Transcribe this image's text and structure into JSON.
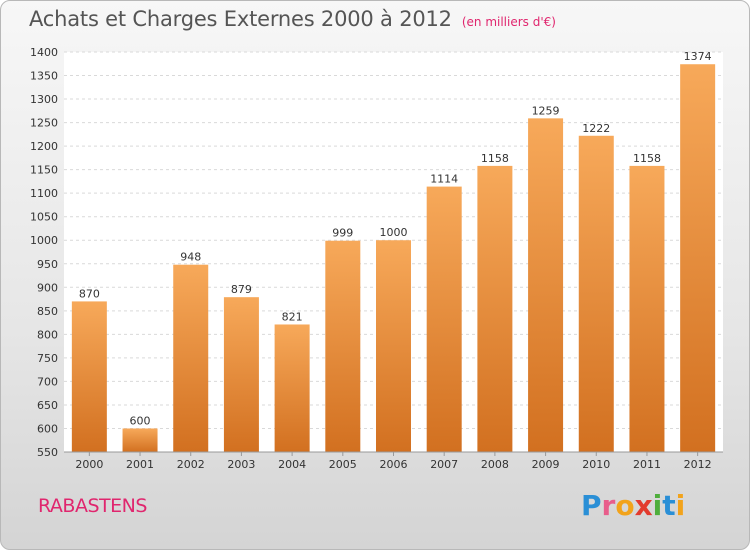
{
  "header": {
    "title": "Achats et Charges Externes 2000 à 2012",
    "subtitle": "(en milliers d'€)"
  },
  "footer": {
    "town": "RABASTENS",
    "brand": [
      {
        "char": "P",
        "color": "#2a8fd6"
      },
      {
        "char": "r",
        "color": "#e85d8b"
      },
      {
        "char": "o",
        "color": "#f2a31b"
      },
      {
        "char": "x",
        "color": "#e23b2e"
      },
      {
        "char": "i",
        "color": "#4fae3c"
      },
      {
        "char": "t",
        "color": "#2a8fd6"
      },
      {
        "char": "i",
        "color": "#f2a31b"
      }
    ]
  },
  "colors": {
    "bar_light": "#f7a95a",
    "bar_dark": "#d27020",
    "axis_text": "#333333",
    "grid": "#d9d9d9"
  },
  "chart_data": {
    "type": "bar",
    "categories": [
      "2000",
      "2001",
      "2002",
      "2003",
      "2004",
      "2005",
      "2006",
      "2007",
      "2008",
      "2009",
      "2010",
      "2011",
      "2012"
    ],
    "values": [
      870,
      600,
      948,
      879,
      821,
      999,
      1000,
      1114,
      1158,
      1259,
      1222,
      1158,
      1374
    ],
    "ylim": [
      550,
      1400
    ],
    "yticks": [
      550,
      600,
      650,
      700,
      750,
      800,
      850,
      900,
      950,
      1000,
      1050,
      1100,
      1150,
      1200,
      1250,
      1300,
      1350,
      1400
    ],
    "grid": true,
    "legend": "none"
  }
}
